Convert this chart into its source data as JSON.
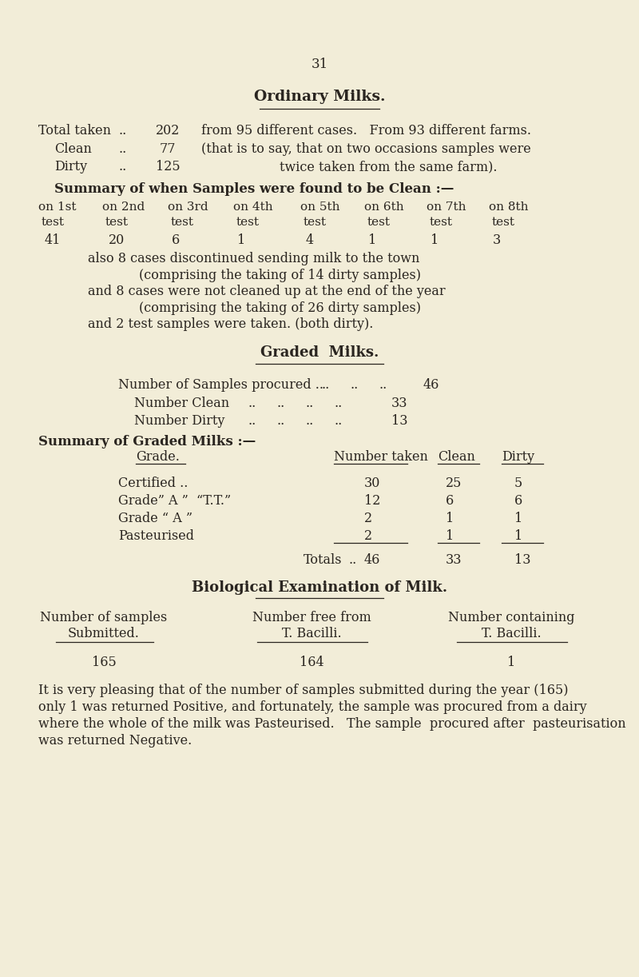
{
  "bg_color": "#f2edd8",
  "text_color": "#2a2520",
  "page_number": "31",
  "title": "Ordinary Milks.",
  "summary_heading": "Summary of when Samples were found to be Clean :—",
  "col_headers": [
    "on 1st",
    "on 2nd",
    "on 3rd",
    "on 4th",
    "on 5th",
    "on 6th",
    "on 7th",
    "on 8th"
  ],
  "col_values": [
    "41",
    "20",
    "6",
    "1",
    "4",
    "1",
    "1",
    "3"
  ],
  "also_lines": [
    "also 8 cases discontinued sending milk to the town",
    "(comprising the taking of 14 dirty samples)",
    "and 8 cases were not cleaned up at the end of the year",
    "(comprising the taking of 26 dirty samples)",
    "and 2 test samples were taken. (both dirty)."
  ],
  "graded_title": "Graded  Milks.",
  "graded_summary_heading": "Summary of Graded Milks :—",
  "bio_title": "Biological Examination of Milk.",
  "para_lines": [
    "It is very pleasing that of the number of samples submitted during the year (165)",
    "only 1 was returned Positive, and fortunately, the sample was procured from a dairy",
    "where the whole of the milk was Pasteurised.   The sample  procured after  pasteurisation",
    "was returned Negative."
  ]
}
